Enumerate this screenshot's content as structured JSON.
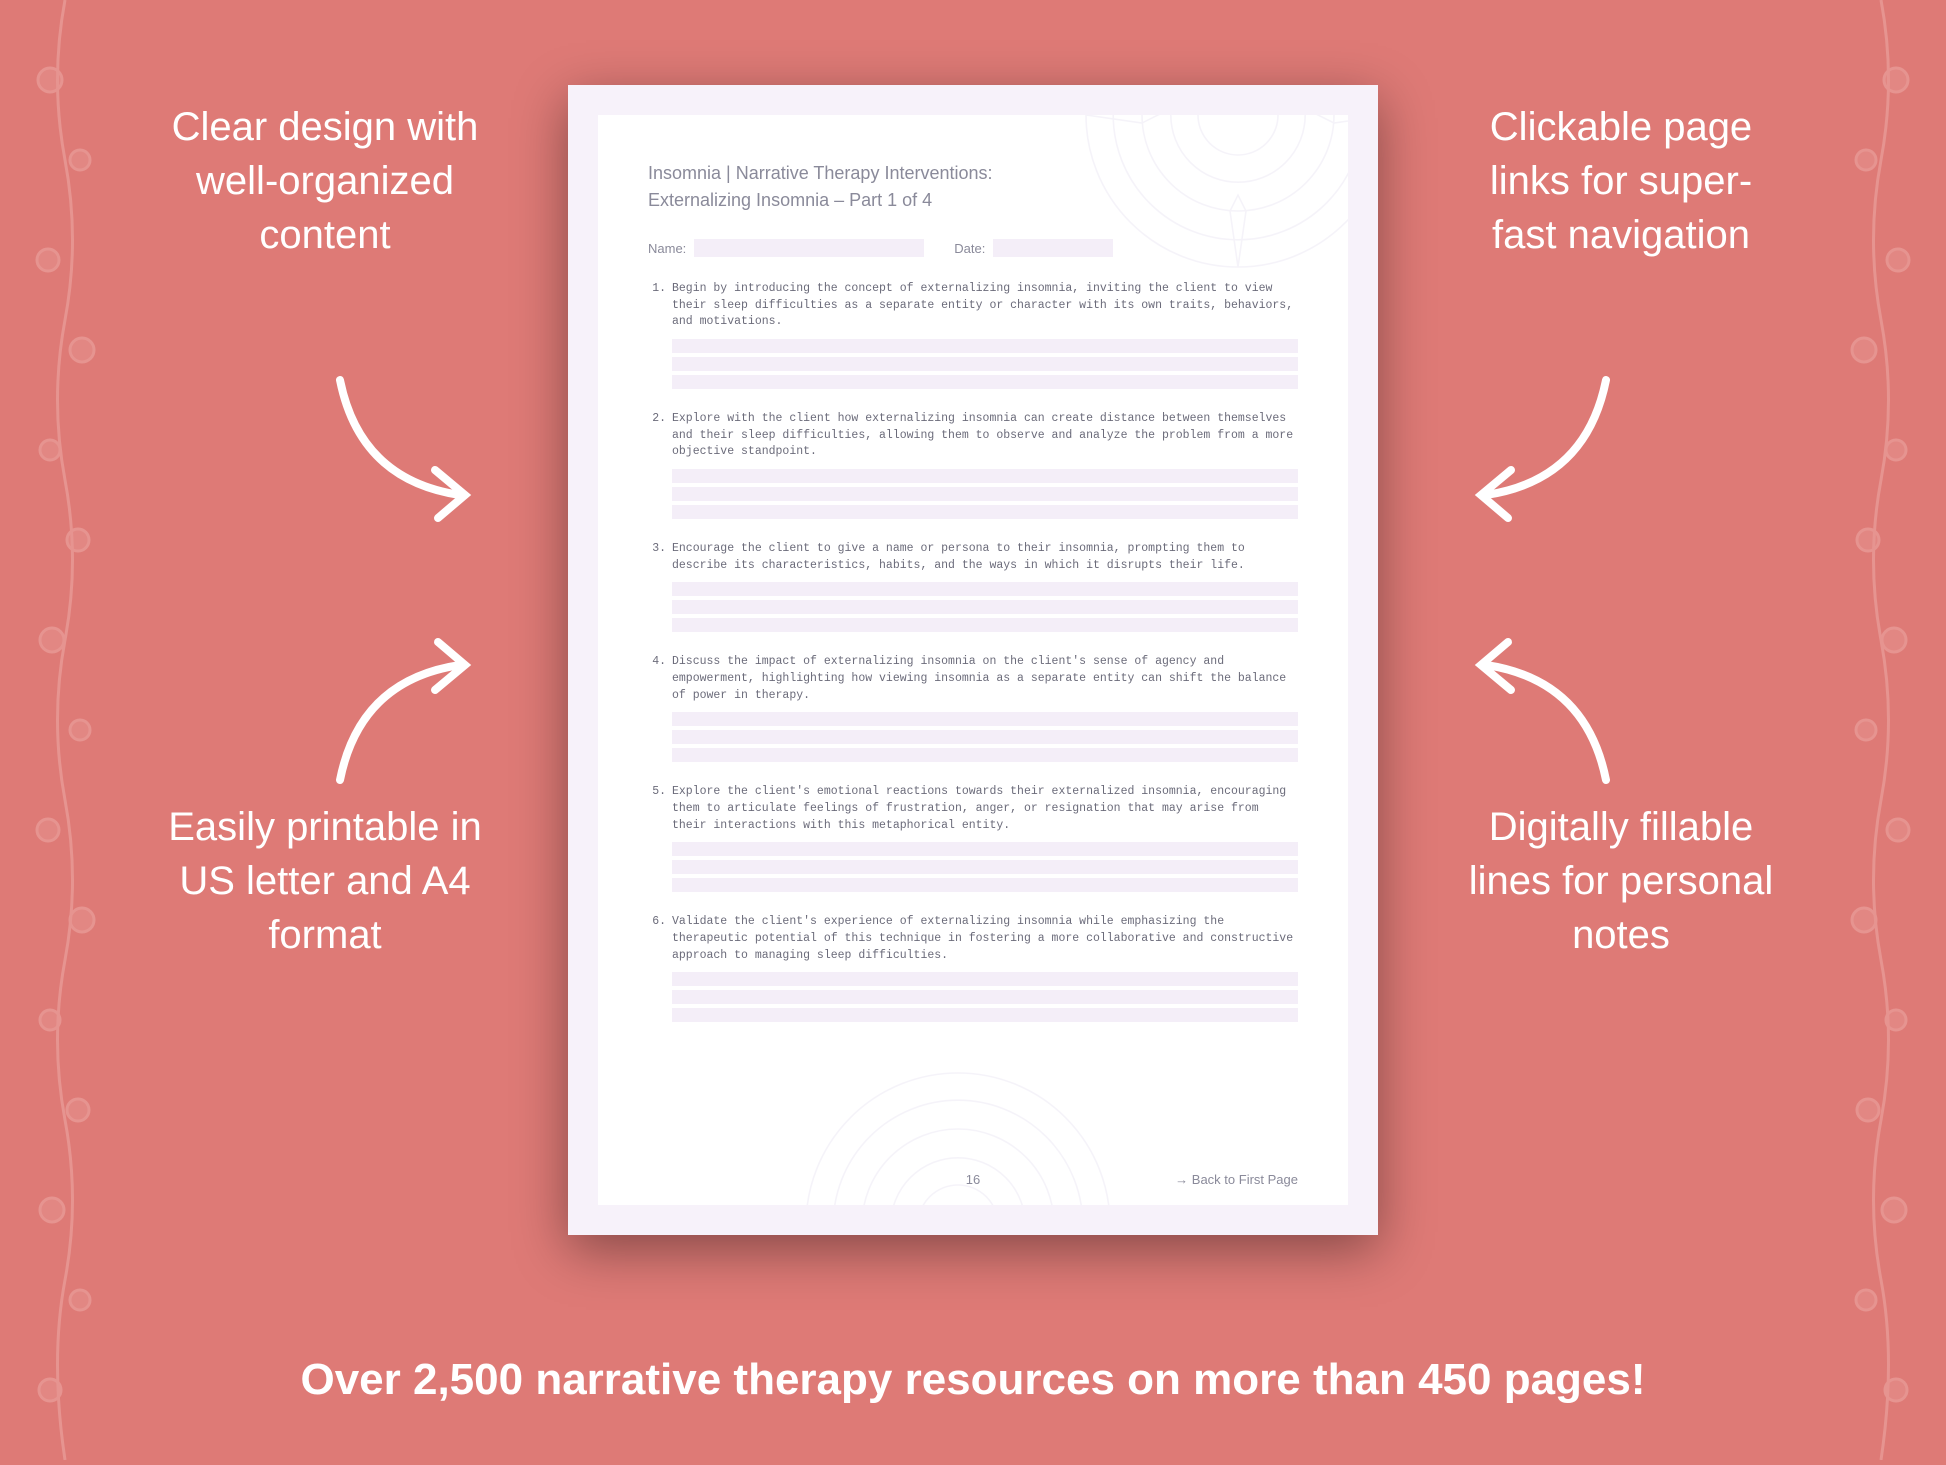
{
  "callouts": {
    "tl": "Clear design with well-organized content",
    "tr": "Clickable page links for super-fast navigation",
    "bl": "Easily printable in US letter and A4 format",
    "br": "Digitally fillable lines for personal notes"
  },
  "banner": "Over 2,500 narrative therapy resources on more than 450 pages!",
  "doc": {
    "title1": "Insomnia | Narrative Therapy Interventions:",
    "title2": "Externalizing Insomnia – Part 1 of 4",
    "name_label": "Name:",
    "date_label": "Date:",
    "items": [
      {
        "n": "1.",
        "t": "Begin by introducing the concept of externalizing insomnia, inviting the client to view their sleep difficulties as a separate entity or character with its own traits, behaviors, and motivations."
      },
      {
        "n": "2.",
        "t": "Explore with the client how externalizing insomnia can create distance between themselves and their sleep difficulties, allowing them to observe and analyze the problem from a more objective standpoint."
      },
      {
        "n": "3.",
        "t": "Encourage the client to give a name or persona to their insomnia, prompting them to describe its characteristics, habits, and the ways in which it disrupts their life."
      },
      {
        "n": "4.",
        "t": "Discuss the impact of externalizing insomnia on the client's sense of agency and empowerment, highlighting how viewing insomnia as a separate entity can shift the balance of power in therapy."
      },
      {
        "n": "5.",
        "t": "Explore the client's emotional reactions towards their externalized insomnia, encouraging them to articulate feelings of frustration, anger, or resignation that may arise from their interactions with this metaphorical entity."
      },
      {
        "n": "6.",
        "t": "Validate the client's experience of externalizing insomnia while emphasizing the therapeutic potential of this technique in fostering a more collaborative and constructive approach to managing sleep difficulties."
      }
    ],
    "page_number": "16",
    "back_link": "→ Back to First Page"
  },
  "colors": {
    "bg": "#de7a76",
    "doc_outer": "#f7f2fa",
    "doc_inner_bg": "#ffffff",
    "fill_line": "#f4eef8",
    "text_light": "#8a8a9a",
    "white": "#ffffff"
  }
}
